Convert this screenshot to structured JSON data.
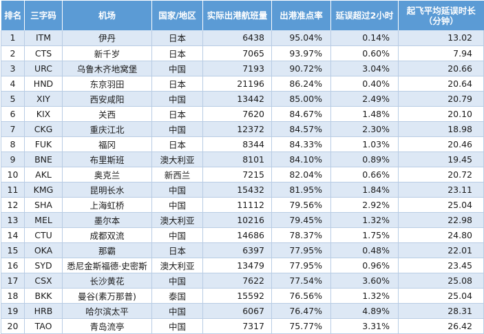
{
  "table": {
    "headers": {
      "rank": "排名",
      "code": "三字码",
      "airport": "机场",
      "region": "国家/地区",
      "flights": "实际出港航班量",
      "ontime": "出港准点率",
      "delay2h": "延误超过2小时",
      "avgdelay_line1": "起飞平均延误时长",
      "avgdelay_line2": "（分钟）"
    },
    "rows": [
      {
        "rank": "1",
        "code": "ITM",
        "airport": "伊丹",
        "region": "日本",
        "flights": "6438",
        "ontime": "95.04%",
        "delay2h": "0.14%",
        "avgdelay": "13.02"
      },
      {
        "rank": "2",
        "code": "CTS",
        "airport": "新千岁",
        "region": "日本",
        "flights": "7065",
        "ontime": "93.97%",
        "delay2h": "0.60%",
        "avgdelay": "7.94"
      },
      {
        "rank": "3",
        "code": "URC",
        "airport": "乌鲁木齐地窝堡",
        "region": "中国",
        "flights": "7193",
        "ontime": "90.72%",
        "delay2h": "3.04%",
        "avgdelay": "20.66"
      },
      {
        "rank": "4",
        "code": "HND",
        "airport": "东京羽田",
        "region": "日本",
        "flights": "21196",
        "ontime": "86.24%",
        "delay2h": "0.40%",
        "avgdelay": "20.64"
      },
      {
        "rank": "5",
        "code": "XIY",
        "airport": "西安咸阳",
        "region": "中国",
        "flights": "13442",
        "ontime": "85.00%",
        "delay2h": "2.49%",
        "avgdelay": "20.79"
      },
      {
        "rank": "6",
        "code": "KIX",
        "airport": "关西",
        "region": "日本",
        "flights": "7620",
        "ontime": "84.67%",
        "delay2h": "1.48%",
        "avgdelay": "20.10"
      },
      {
        "rank": "7",
        "code": "CKG",
        "airport": "重庆江北",
        "region": "中国",
        "flights": "12372",
        "ontime": "84.57%",
        "delay2h": "2.30%",
        "avgdelay": "18.98"
      },
      {
        "rank": "8",
        "code": "FUK",
        "airport": "福冈",
        "region": "日本",
        "flights": "8344",
        "ontime": "84.33%",
        "delay2h": "1.03%",
        "avgdelay": "20.46"
      },
      {
        "rank": "9",
        "code": "BNE",
        "airport": "布里斯班",
        "region": "澳大利亚",
        "flights": "8101",
        "ontime": "84.10%",
        "delay2h": "0.89%",
        "avgdelay": "19.45"
      },
      {
        "rank": "10",
        "code": "AKL",
        "airport": "奥克兰",
        "region": "新西兰",
        "flights": "7215",
        "ontime": "82.04%",
        "delay2h": "0.66%",
        "avgdelay": "20.72"
      },
      {
        "rank": "11",
        "code": "KMG",
        "airport": "昆明长水",
        "region": "中国",
        "flights": "15432",
        "ontime": "81.95%",
        "delay2h": "1.84%",
        "avgdelay": "23.11"
      },
      {
        "rank": "12",
        "code": "SHA",
        "airport": "上海虹桥",
        "region": "中国",
        "flights": "11112",
        "ontime": "79.56%",
        "delay2h": "2.92%",
        "avgdelay": "25.04"
      },
      {
        "rank": "13",
        "code": "MEL",
        "airport": "墨尔本",
        "region": "澳大利亚",
        "flights": "10216",
        "ontime": "79.45%",
        "delay2h": "1.32%",
        "avgdelay": "22.98"
      },
      {
        "rank": "14",
        "code": "CTU",
        "airport": "成都双流",
        "region": "中国",
        "flights": "14686",
        "ontime": "78.37%",
        "delay2h": "1.75%",
        "avgdelay": "24.80"
      },
      {
        "rank": "15",
        "code": "OKA",
        "airport": "那霸",
        "region": "日本",
        "flights": "6397",
        "ontime": "77.95%",
        "delay2h": "0.48%",
        "avgdelay": "22.01"
      },
      {
        "rank": "16",
        "code": "SYD",
        "airport": "悉尼金斯福德·史密斯",
        "region": "澳大利亚",
        "flights": "13479",
        "ontime": "77.95%",
        "delay2h": "0.96%",
        "avgdelay": "23.45"
      },
      {
        "rank": "17",
        "code": "CSX",
        "airport": "长沙黄花",
        "region": "中国",
        "flights": "7622",
        "ontime": "77.54%",
        "delay2h": "3.60%",
        "avgdelay": "25.08"
      },
      {
        "rank": "18",
        "code": "BKK",
        "airport": "曼谷(素万那普)",
        "region": "泰国",
        "flights": "15592",
        "ontime": "76.56%",
        "delay2h": "1.32%",
        "avgdelay": "25.04"
      },
      {
        "rank": "19",
        "code": "HRB",
        "airport": "哈尔滨太平",
        "region": "中国",
        "flights": "6067",
        "ontime": "76.47%",
        "delay2h": "4.89%",
        "avgdelay": "28.31"
      },
      {
        "rank": "20",
        "code": "TAO",
        "airport": "青岛流亭",
        "region": "中国",
        "flights": "7317",
        "ontime": "75.77%",
        "delay2h": "3.31%",
        "avgdelay": "26.42"
      }
    ],
    "colors": {
      "header_bg": "#5b9bd5",
      "header_text": "#ffffff",
      "row_odd": "#dde8f5",
      "row_even": "#ffffff",
      "grid": "#b8cce4"
    }
  }
}
